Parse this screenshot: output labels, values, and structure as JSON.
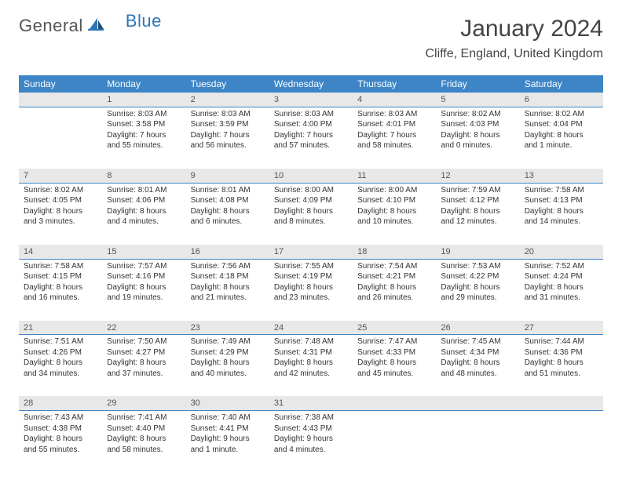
{
  "brand": {
    "part1": "General",
    "part2": "Blue"
  },
  "header": {
    "title": "January 2024",
    "location": "Cliffe, England, United Kingdom"
  },
  "colors": {
    "header_bg": "#3d85c6",
    "header_text": "#ffffff",
    "daynum_bg": "#e8e8e8",
    "daynum_border": "#3d85c6",
    "body_text": "#333333",
    "logo_blue": "#2e75b6"
  },
  "typography": {
    "title_fontsize": 30,
    "location_fontsize": 16,
    "dayhead_fontsize": 12,
    "cell_fontsize": 10
  },
  "day_headers": [
    "Sunday",
    "Monday",
    "Tuesday",
    "Wednesday",
    "Thursday",
    "Friday",
    "Saturday"
  ],
  "weeks": [
    [
      null,
      {
        "n": "1",
        "sunrise": "8:03 AM",
        "sunset": "3:58 PM",
        "day_h": "7",
        "day_m": "55"
      },
      {
        "n": "2",
        "sunrise": "8:03 AM",
        "sunset": "3:59 PM",
        "day_h": "7",
        "day_m": "56"
      },
      {
        "n": "3",
        "sunrise": "8:03 AM",
        "sunset": "4:00 PM",
        "day_h": "7",
        "day_m": "57"
      },
      {
        "n": "4",
        "sunrise": "8:03 AM",
        "sunset": "4:01 PM",
        "day_h": "7",
        "day_m": "58"
      },
      {
        "n": "5",
        "sunrise": "8:02 AM",
        "sunset": "4:03 PM",
        "day_h": "8",
        "day_m": "0"
      },
      {
        "n": "6",
        "sunrise": "8:02 AM",
        "sunset": "4:04 PM",
        "day_h": "8",
        "day_m": "1"
      }
    ],
    [
      {
        "n": "7",
        "sunrise": "8:02 AM",
        "sunset": "4:05 PM",
        "day_h": "8",
        "day_m": "3"
      },
      {
        "n": "8",
        "sunrise": "8:01 AM",
        "sunset": "4:06 PM",
        "day_h": "8",
        "day_m": "4"
      },
      {
        "n": "9",
        "sunrise": "8:01 AM",
        "sunset": "4:08 PM",
        "day_h": "8",
        "day_m": "6"
      },
      {
        "n": "10",
        "sunrise": "8:00 AM",
        "sunset": "4:09 PM",
        "day_h": "8",
        "day_m": "8"
      },
      {
        "n": "11",
        "sunrise": "8:00 AM",
        "sunset": "4:10 PM",
        "day_h": "8",
        "day_m": "10"
      },
      {
        "n": "12",
        "sunrise": "7:59 AM",
        "sunset": "4:12 PM",
        "day_h": "8",
        "day_m": "12"
      },
      {
        "n": "13",
        "sunrise": "7:58 AM",
        "sunset": "4:13 PM",
        "day_h": "8",
        "day_m": "14"
      }
    ],
    [
      {
        "n": "14",
        "sunrise": "7:58 AM",
        "sunset": "4:15 PM",
        "day_h": "8",
        "day_m": "16"
      },
      {
        "n": "15",
        "sunrise": "7:57 AM",
        "sunset": "4:16 PM",
        "day_h": "8",
        "day_m": "19"
      },
      {
        "n": "16",
        "sunrise": "7:56 AM",
        "sunset": "4:18 PM",
        "day_h": "8",
        "day_m": "21"
      },
      {
        "n": "17",
        "sunrise": "7:55 AM",
        "sunset": "4:19 PM",
        "day_h": "8",
        "day_m": "23"
      },
      {
        "n": "18",
        "sunrise": "7:54 AM",
        "sunset": "4:21 PM",
        "day_h": "8",
        "day_m": "26"
      },
      {
        "n": "19",
        "sunrise": "7:53 AM",
        "sunset": "4:22 PM",
        "day_h": "8",
        "day_m": "29"
      },
      {
        "n": "20",
        "sunrise": "7:52 AM",
        "sunset": "4:24 PM",
        "day_h": "8",
        "day_m": "31"
      }
    ],
    [
      {
        "n": "21",
        "sunrise": "7:51 AM",
        "sunset": "4:26 PM",
        "day_h": "8",
        "day_m": "34"
      },
      {
        "n": "22",
        "sunrise": "7:50 AM",
        "sunset": "4:27 PM",
        "day_h": "8",
        "day_m": "37"
      },
      {
        "n": "23",
        "sunrise": "7:49 AM",
        "sunset": "4:29 PM",
        "day_h": "8",
        "day_m": "40"
      },
      {
        "n": "24",
        "sunrise": "7:48 AM",
        "sunset": "4:31 PM",
        "day_h": "8",
        "day_m": "42"
      },
      {
        "n": "25",
        "sunrise": "7:47 AM",
        "sunset": "4:33 PM",
        "day_h": "8",
        "day_m": "45"
      },
      {
        "n": "26",
        "sunrise": "7:45 AM",
        "sunset": "4:34 PM",
        "day_h": "8",
        "day_m": "48"
      },
      {
        "n": "27",
        "sunrise": "7:44 AM",
        "sunset": "4:36 PM",
        "day_h": "8",
        "day_m": "51"
      }
    ],
    [
      {
        "n": "28",
        "sunrise": "7:43 AM",
        "sunset": "4:38 PM",
        "day_h": "8",
        "day_m": "55"
      },
      {
        "n": "29",
        "sunrise": "7:41 AM",
        "sunset": "4:40 PM",
        "day_h": "8",
        "day_m": "58"
      },
      {
        "n": "30",
        "sunrise": "7:40 AM",
        "sunset": "4:41 PM",
        "day_h": "9",
        "day_m": "1"
      },
      {
        "n": "31",
        "sunrise": "7:38 AM",
        "sunset": "4:43 PM",
        "day_h": "9",
        "day_m": "4"
      },
      null,
      null,
      null
    ]
  ],
  "labels": {
    "sunrise": "Sunrise:",
    "sunset": "Sunset:",
    "daylight": "Daylight:",
    "hours": "hours",
    "and": "and",
    "minute": "minute.",
    "minutes": "minutes."
  }
}
